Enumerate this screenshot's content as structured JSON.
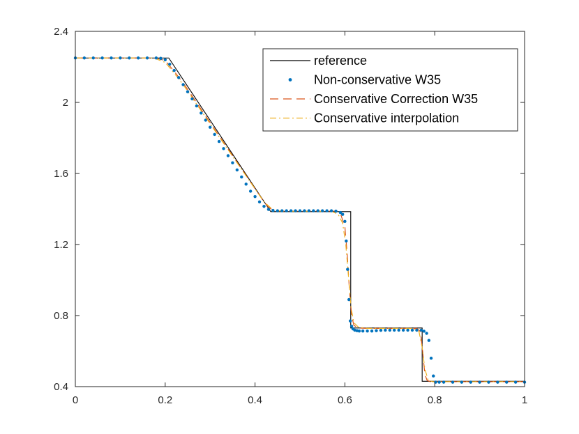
{
  "chart_data": {
    "type": "line",
    "xlim": [
      0,
      1
    ],
    "ylim": [
      0.4,
      2.4
    ],
    "x_ticks": [
      0,
      0.2,
      0.4,
      0.6,
      0.8,
      1
    ],
    "x_tick_labels": [
      "0",
      "0.2",
      "0.4",
      "0.6",
      "0.8",
      "1"
    ],
    "y_ticks": [
      0.4,
      0.8,
      1.2,
      1.6,
      2.0,
      2.4
    ],
    "y_tick_labels": [
      "0.4",
      "0.8",
      "1.2",
      "1.6",
      "2",
      "2.4"
    ],
    "grid": false,
    "legend_position": "top-right",
    "series": [
      {
        "name": "reference",
        "style": "solid",
        "color": "#000000",
        "x": [
          0,
          0.208,
          0.435,
          0.613,
          0.613,
          0.772,
          0.772,
          1.0
        ],
        "y": [
          2.25,
          2.25,
          1.385,
          1.385,
          0.73,
          0.73,
          0.43,
          0.43
        ]
      },
      {
        "name": "Non-conservative W35",
        "style": "dots",
        "color": "#0072BD",
        "x": [
          0.0,
          0.02,
          0.04,
          0.06,
          0.08,
          0.1,
          0.12,
          0.14,
          0.16,
          0.18,
          0.19,
          0.2,
          0.21,
          0.22,
          0.23,
          0.24,
          0.25,
          0.26,
          0.27,
          0.28,
          0.29,
          0.3,
          0.31,
          0.32,
          0.33,
          0.34,
          0.35,
          0.36,
          0.37,
          0.38,
          0.39,
          0.4,
          0.41,
          0.42,
          0.43,
          0.44,
          0.45,
          0.46,
          0.47,
          0.48,
          0.49,
          0.5,
          0.51,
          0.52,
          0.53,
          0.54,
          0.55,
          0.56,
          0.57,
          0.58,
          0.59,
          0.595,
          0.6,
          0.603,
          0.606,
          0.609,
          0.612,
          0.615,
          0.618,
          0.622,
          0.627,
          0.632,
          0.64,
          0.65,
          0.66,
          0.67,
          0.68,
          0.69,
          0.7,
          0.71,
          0.72,
          0.73,
          0.74,
          0.75,
          0.76,
          0.77,
          0.776,
          0.782,
          0.787,
          0.792,
          0.797,
          0.802,
          0.81,
          0.82,
          0.84,
          0.86,
          0.88,
          0.9,
          0.92,
          0.94,
          0.96,
          0.98,
          1.0
        ],
        "y": [
          2.25,
          2.25,
          2.25,
          2.25,
          2.25,
          2.25,
          2.25,
          2.25,
          2.25,
          2.25,
          2.248,
          2.24,
          2.215,
          2.18,
          2.14,
          2.1,
          2.06,
          2.02,
          1.98,
          1.94,
          1.9,
          1.86,
          1.82,
          1.78,
          1.74,
          1.7,
          1.66,
          1.62,
          1.58,
          1.54,
          1.5,
          1.47,
          1.44,
          1.415,
          1.398,
          1.392,
          1.39,
          1.39,
          1.39,
          1.39,
          1.39,
          1.39,
          1.39,
          1.39,
          1.39,
          1.39,
          1.39,
          1.39,
          1.39,
          1.388,
          1.38,
          1.37,
          1.33,
          1.22,
          1.06,
          0.89,
          0.77,
          0.74,
          0.725,
          0.718,
          0.715,
          0.713,
          0.713,
          0.713,
          0.713,
          0.715,
          0.717,
          0.718,
          0.718,
          0.718,
          0.718,
          0.718,
          0.718,
          0.718,
          0.718,
          0.718,
          0.712,
          0.7,
          0.66,
          0.56,
          0.46,
          0.425,
          0.425,
          0.425,
          0.425,
          0.425,
          0.425,
          0.425,
          0.425,
          0.425,
          0.425,
          0.425,
          0.425
        ]
      },
      {
        "name": "Conservative Correction W35",
        "style": "dashed",
        "color": "#D95319",
        "x": [
          0,
          0.18,
          0.2,
          0.22,
          0.24,
          0.42,
          0.43,
          0.44,
          0.45,
          0.58,
          0.59,
          0.6,
          0.605,
          0.61,
          0.615,
          0.62,
          0.63,
          0.65,
          0.76,
          0.768,
          0.773,
          0.778,
          0.783,
          0.79,
          1.0
        ],
        "y": [
          2.25,
          2.25,
          2.235,
          2.175,
          2.11,
          1.44,
          1.41,
          1.393,
          1.388,
          1.388,
          1.375,
          1.3,
          1.15,
          0.95,
          0.8,
          0.745,
          0.73,
          0.728,
          0.728,
          0.71,
          0.6,
          0.47,
          0.435,
          0.428,
          0.428
        ]
      },
      {
        "name": "Conservative interpolation",
        "style": "dashdot",
        "color": "#EDB120",
        "x": [
          0,
          0.175,
          0.2,
          0.22,
          0.24,
          0.42,
          0.44,
          0.46,
          0.57,
          0.585,
          0.595,
          0.602,
          0.608,
          0.614,
          0.62,
          0.63,
          0.65,
          0.75,
          0.765,
          0.772,
          0.778,
          0.785,
          0.795,
          1.0
        ],
        "y": [
          2.25,
          2.25,
          2.225,
          2.165,
          2.1,
          1.44,
          1.395,
          1.387,
          1.387,
          1.37,
          1.32,
          1.2,
          1.02,
          0.84,
          0.76,
          0.735,
          0.728,
          0.728,
          0.71,
          0.62,
          0.5,
          0.44,
          0.428,
          0.428
        ]
      }
    ]
  }
}
